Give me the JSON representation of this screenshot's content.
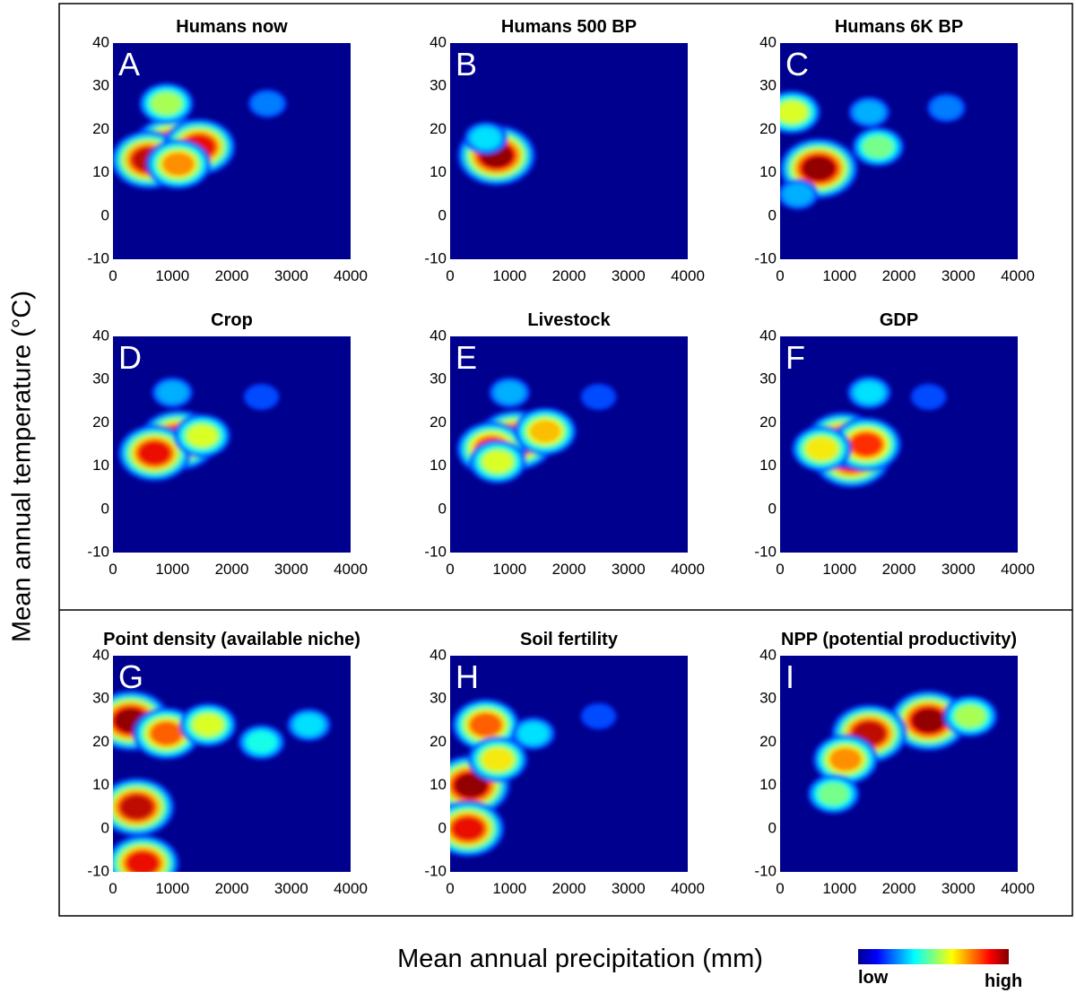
{
  "figure": {
    "ylabel": "Mean annual temperature (°C)",
    "xlabel": "Mean annual precipitation (mm)",
    "colorbar": {
      "low_label": "low",
      "high_label": "high"
    }
  },
  "chart_data": [
    {
      "type": "heatmap",
      "panel": "A",
      "title": "Humans now",
      "xlim": [
        0,
        4000
      ],
      "ylim": [
        -10,
        40
      ],
      "xticks": [
        "0",
        "1000",
        "2000",
        "3000",
        "4000"
      ],
      "yticks": [
        "-10",
        "0",
        "10",
        "20",
        "30",
        "40"
      ],
      "hotspots": [
        {
          "x": 1000,
          "y": 16,
          "density": 1.0
        },
        {
          "x": 600,
          "y": 13,
          "density": 0.95
        },
        {
          "x": 1450,
          "y": 16,
          "density": 0.9
        },
        {
          "x": 1100,
          "y": 12,
          "density": 0.75
        },
        {
          "x": 900,
          "y": 26,
          "density": 0.55
        },
        {
          "x": 2600,
          "y": 26,
          "density": 0.25
        }
      ]
    },
    {
      "type": "heatmap",
      "panel": "B",
      "title": "Humans 500 BP",
      "xlim": [
        0,
        4000
      ],
      "ylim": [
        -10,
        40
      ],
      "xticks": [
        "0",
        "1000",
        "2000",
        "3000",
        "4000"
      ],
      "yticks": [
        "-10",
        "0",
        "10",
        "20",
        "30",
        "40"
      ],
      "hotspots": [
        {
          "x": 780,
          "y": 14,
          "density": 1.0
        },
        {
          "x": 600,
          "y": 18,
          "density": 0.35
        }
      ]
    },
    {
      "type": "heatmap",
      "panel": "C",
      "title": "Humans 6K BP",
      "xlim": [
        0,
        4000
      ],
      "ylim": [
        -10,
        40
      ],
      "xticks": [
        "0",
        "1000",
        "2000",
        "3000",
        "4000"
      ],
      "yticks": [
        "-10",
        "0",
        "10",
        "20",
        "30",
        "40"
      ],
      "hotspots": [
        {
          "x": 650,
          "y": 11,
          "density": 1.0
        },
        {
          "x": 200,
          "y": 24,
          "density": 0.6
        },
        {
          "x": 1650,
          "y": 16,
          "density": 0.5
        },
        {
          "x": 1500,
          "y": 24,
          "density": 0.3
        },
        {
          "x": 2800,
          "y": 25,
          "density": 0.25
        },
        {
          "x": 300,
          "y": 5,
          "density": 0.3
        }
      ]
    },
    {
      "type": "heatmap",
      "panel": "D",
      "title": "Crop",
      "xlim": [
        0,
        4000
      ],
      "ylim": [
        -10,
        40
      ],
      "xticks": [
        "0",
        "1000",
        "2000",
        "3000",
        "4000"
      ],
      "yticks": [
        "-10",
        "0",
        "10",
        "20",
        "30",
        "40"
      ],
      "hotspots": [
        {
          "x": 1100,
          "y": 16,
          "density": 1.0
        },
        {
          "x": 700,
          "y": 13,
          "density": 0.9
        },
        {
          "x": 1500,
          "y": 17,
          "density": 0.6
        },
        {
          "x": 1000,
          "y": 27,
          "density": 0.3
        },
        {
          "x": 2500,
          "y": 26,
          "density": 0.2
        }
      ]
    },
    {
      "type": "heatmap",
      "panel": "E",
      "title": "Livestock",
      "xlim": [
        0,
        4000
      ],
      "ylim": [
        -10,
        40
      ],
      "xticks": [
        "0",
        "1000",
        "2000",
        "3000",
        "4000"
      ],
      "yticks": [
        "-10",
        "0",
        "10",
        "20",
        "30",
        "40"
      ],
      "hotspots": [
        {
          "x": 1100,
          "y": 16,
          "density": 1.0
        },
        {
          "x": 700,
          "y": 14,
          "density": 0.85
        },
        {
          "x": 1600,
          "y": 18,
          "density": 0.7
        },
        {
          "x": 800,
          "y": 11,
          "density": 0.6
        },
        {
          "x": 1000,
          "y": 27,
          "density": 0.3
        },
        {
          "x": 2500,
          "y": 26,
          "density": 0.2
        }
      ]
    },
    {
      "type": "heatmap",
      "panel": "F",
      "title": "GDP",
      "xlim": [
        0,
        4000
      ],
      "ylim": [
        -10,
        40
      ],
      "xticks": [
        "0",
        "1000",
        "2000",
        "3000",
        "4000"
      ],
      "yticks": [
        "-10",
        "0",
        "10",
        "20",
        "30",
        "40"
      ],
      "hotspots": [
        {
          "x": 1200,
          "y": 12,
          "density": 1.0
        },
        {
          "x": 1050,
          "y": 16,
          "density": 0.9
        },
        {
          "x": 1450,
          "y": 15,
          "density": 0.85
        },
        {
          "x": 700,
          "y": 14,
          "density": 0.65
        },
        {
          "x": 1500,
          "y": 27,
          "density": 0.35
        },
        {
          "x": 2500,
          "y": 26,
          "density": 0.2
        }
      ]
    },
    {
      "type": "heatmap",
      "panel": "G",
      "title": "Point density (available niche)",
      "xlim": [
        0,
        4000
      ],
      "ylim": [
        -10,
        40
      ],
      "xticks": [
        "0",
        "1000",
        "2000",
        "3000",
        "4000"
      ],
      "yticks": [
        "-10",
        "0",
        "10",
        "20",
        "30",
        "40"
      ],
      "hotspots": [
        {
          "x": 300,
          "y": 25,
          "density": 1.0
        },
        {
          "x": 400,
          "y": 5,
          "density": 0.95
        },
        {
          "x": 900,
          "y": 22,
          "density": 0.8
        },
        {
          "x": 500,
          "y": -8,
          "density": 0.9
        },
        {
          "x": 1600,
          "y": 24,
          "density": 0.6
        },
        {
          "x": 2500,
          "y": 20,
          "density": 0.4
        },
        {
          "x": 3300,
          "y": 24,
          "density": 0.35
        }
      ]
    },
    {
      "type": "heatmap",
      "panel": "H",
      "title": "Soil fertility",
      "xlim": [
        0,
        4000
      ],
      "ylim": [
        -10,
        40
      ],
      "xticks": [
        "0",
        "1000",
        "2000",
        "3000",
        "4000"
      ],
      "yticks": [
        "-10",
        "0",
        "10",
        "20",
        "30",
        "40"
      ],
      "hotspots": [
        {
          "x": 350,
          "y": 10,
          "density": 1.0
        },
        {
          "x": 300,
          "y": 0,
          "density": 0.9
        },
        {
          "x": 600,
          "y": 24,
          "density": 0.8
        },
        {
          "x": 800,
          "y": 16,
          "density": 0.65
        },
        {
          "x": 1400,
          "y": 22,
          "density": 0.35
        },
        {
          "x": 2500,
          "y": 26,
          "density": 0.2
        }
      ]
    },
    {
      "type": "heatmap",
      "panel": "I",
      "title": "NPP (potential productivity)",
      "xlim": [
        0,
        4000
      ],
      "ylim": [
        -10,
        40
      ],
      "xticks": [
        "0",
        "1000",
        "2000",
        "3000",
        "4000"
      ],
      "yticks": [
        "-10",
        "0",
        "10",
        "20",
        "30",
        "40"
      ],
      "hotspots": [
        {
          "x": 2500,
          "y": 25,
          "density": 1.0
        },
        {
          "x": 1500,
          "y": 22,
          "density": 0.95
        },
        {
          "x": 1100,
          "y": 16,
          "density": 0.75
        },
        {
          "x": 900,
          "y": 8,
          "density": 0.5
        },
        {
          "x": 3200,
          "y": 26,
          "density": 0.55
        }
      ]
    }
  ]
}
